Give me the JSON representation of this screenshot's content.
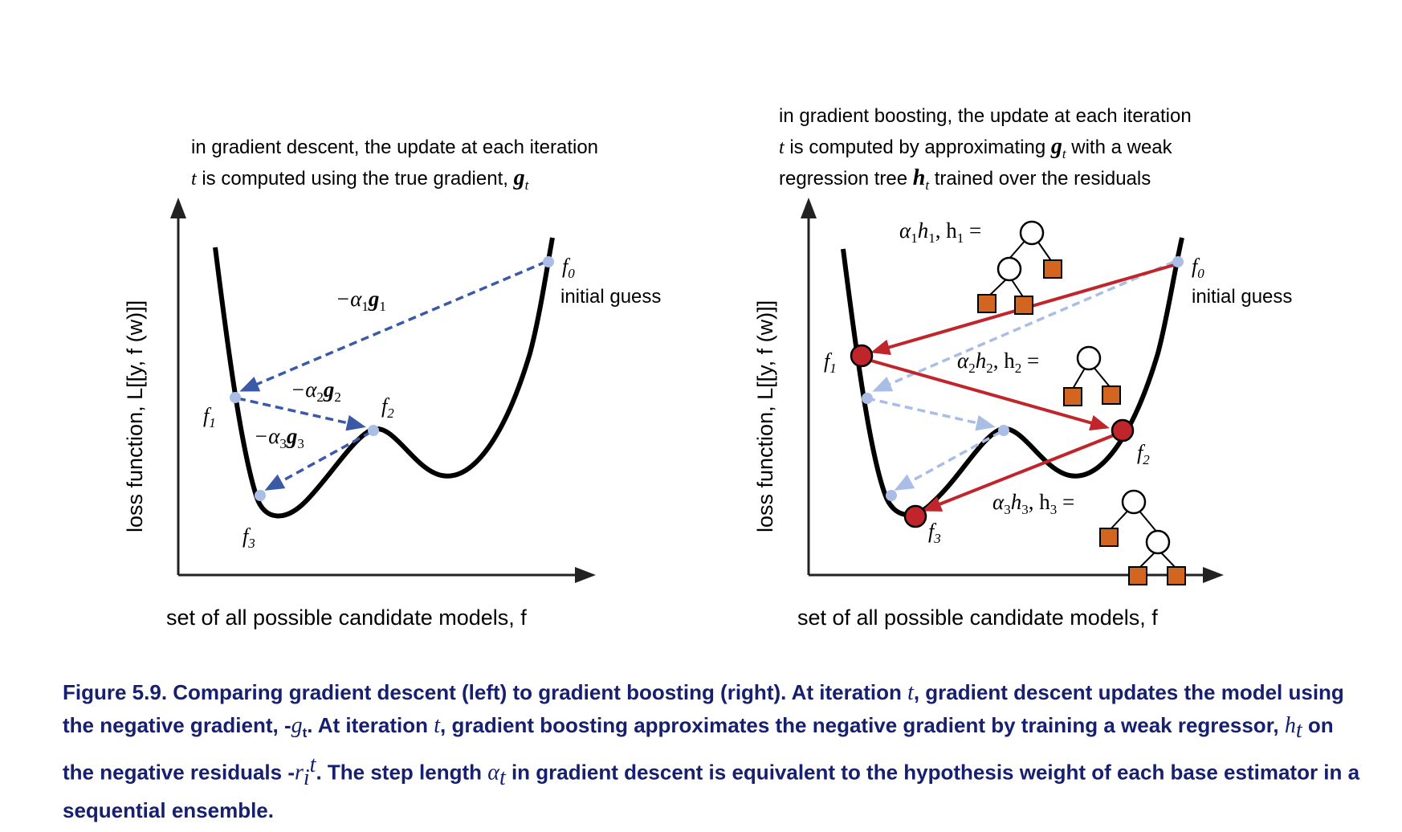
{
  "left_panel": {
    "heading_line1": "in gradient descent, the update at each iteration",
    "heading_line2_prefix": "t",
    "heading_line2_text": " is computed using the true gradient, ",
    "heading_line2_symbol": "g",
    "heading_line2_sub": "t",
    "y_axis_label": "loss function, L[[y, f (w)]]",
    "x_axis_label": "set of all possible candidate models, f",
    "step1": {
      "coef": "−α",
      "coef_sub": "1",
      "sym": "g",
      "sym_sub": "1"
    },
    "step2": {
      "coef": "−α",
      "coef_sub": "2",
      "sym": "g",
      "sym_sub": "2"
    },
    "step3": {
      "coef": "−α",
      "coef_sub": "3",
      "sym": "g",
      "sym_sub": "3"
    },
    "points": {
      "f0": "f",
      "f0_sub": "0",
      "f1": "f",
      "f1_sub": "1",
      "f2": "f",
      "f2_sub": "2",
      "f3": "f",
      "f3_sub": "3"
    },
    "initial_guess": "initial guess"
  },
  "right_panel": {
    "heading_line1": "in gradient boosting, the update at each iteration",
    "heading_line2_prefix": "t",
    "heading_line2_text": " is computed by approximating ",
    "heading_line2_symbol": "g",
    "heading_line2_sub": "t",
    "heading_line2_suffix": " with a weak",
    "heading_line3_text": "regression tree ",
    "heading_line3_symbol": "h",
    "heading_line3_sub": "t",
    "heading_line3_suffix": " trained over the residuals",
    "y_axis_label": "loss function, L[[y, f (w)]]",
    "x_axis_label": "set of all possible candidate models, f",
    "tree1": {
      "a": "α",
      "a_sub": "1",
      "h": "h",
      "h_sub": "1",
      "hr": "h",
      "hr_sub": "1"
    },
    "tree2": {
      "a": "α",
      "a_sub": "2",
      "h": "h",
      "h_sub": "2",
      "hr": "h",
      "hr_sub": "2"
    },
    "tree3": {
      "a": "α",
      "a_sub": "3",
      "h": "h",
      "h_sub": "3",
      "hr": "h",
      "hr_sub": "3"
    },
    "points": {
      "f0": "f",
      "f0_sub": "0",
      "f1": "f",
      "f1_sub": "1",
      "f2": "f",
      "f2_sub": "2",
      "f3": "f",
      "f3_sub": "3"
    },
    "initial_guess": "initial guess"
  },
  "colors": {
    "gradient_arrow": "#3a5aa8",
    "light_arrow": "#a9bde6",
    "boost_arrow": "#c0252b",
    "leaf": "#d2651f",
    "caption": "#16206e"
  },
  "caption": {
    "p1": "Figure 5.9. Comparing gradient descent (left) to gradient boosting (right). At iteration ",
    "t1": "t",
    "p2": ", gradient descent updates the model using the negative gradient, -",
    "g": "g",
    "g_sub": "t",
    "p3": ". At iteration ",
    "t2": "t",
    "p4": ", gradient boosting approximates the negative gradient by training a weak regressor, ",
    "h": "h",
    "h_sub": "t",
    "p5": " on the negative residuals -",
    "r": "r",
    "r_sub": "i",
    "r_sup": "t",
    "p6": ". The step length ",
    "alpha": "α",
    "alpha_sub": "t",
    "p7": " in gradient descent is equivalent to the hypothesis weight of each base estimator in a sequential ensemble."
  }
}
